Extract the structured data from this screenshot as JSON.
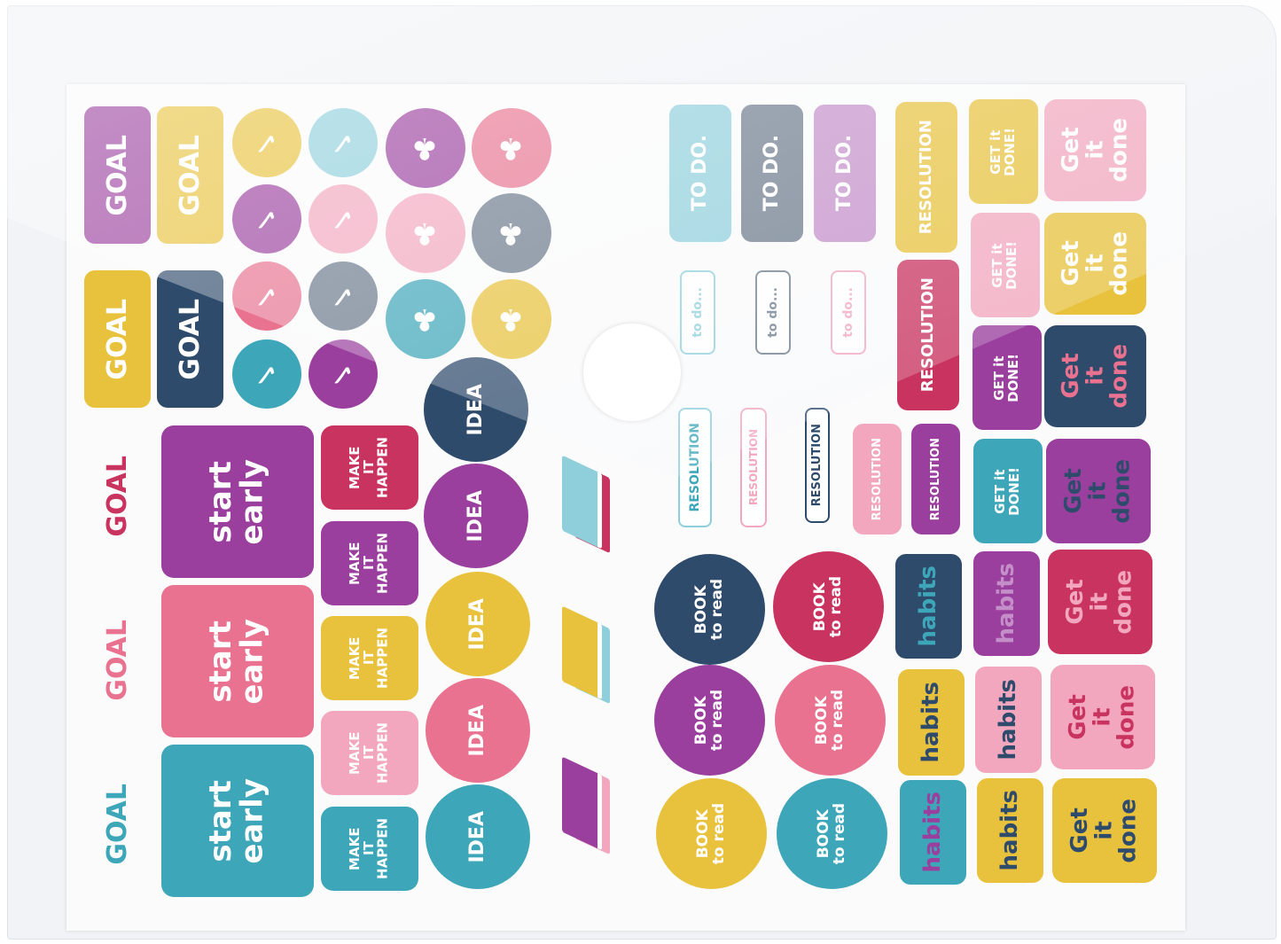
{
  "colors": {
    "purple": "#9a3f9e",
    "yellow": "#e8c23c",
    "teal": "#3ea6b9",
    "pink": "#e8728f",
    "navy": "#2f4b6c",
    "magenta": "#c9335f",
    "lightblue": "#8fcfdc",
    "lightpink": "#f2a7be",
    "gray": "#6c7a8c",
    "lilac": "#c48fc9"
  },
  "labels": {
    "goal": "GOAL",
    "todo": "TO DO.",
    "todo_script": "to do...",
    "resolution": "RESOLUTION",
    "get_it_done": "Get\nit\ndone",
    "get_it_done_caps": "GET it\nDONE!",
    "habits": "habits",
    "book": "BOOK\nto read",
    "idea": "IDEA",
    "make_it_happen": "MAKE\nIT\nHAPPEN",
    "start_early": "start\nearly",
    "check": "✓",
    "tree": "♣"
  }
}
